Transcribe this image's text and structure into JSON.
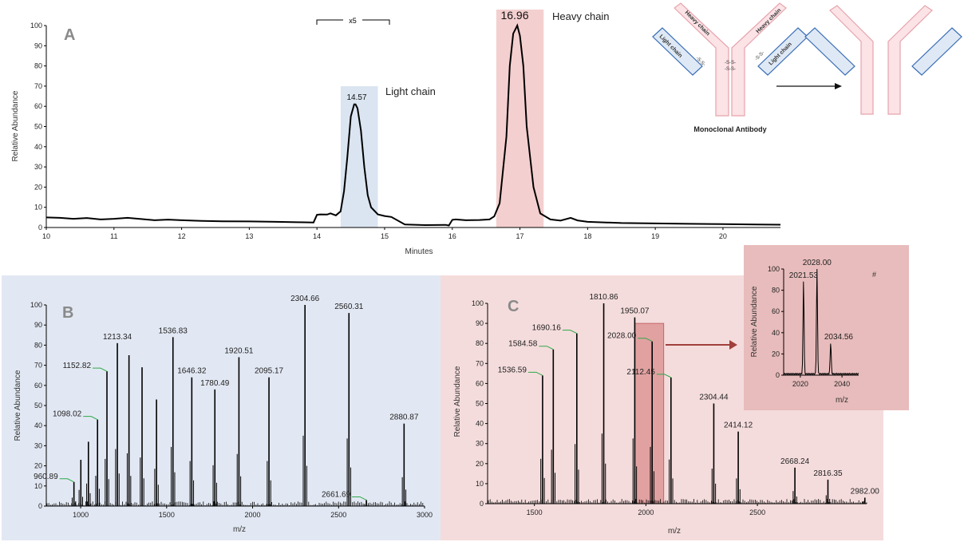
{
  "panels": {
    "a": {
      "letter": "A",
      "ylabel": "Relative Abundance",
      "xlabel": "Minutes",
      "zoom_label": "x5",
      "light_label": "Light chain",
      "heavy_label": "Heavy chain",
      "light_peak_label": "14.57",
      "heavy_peak_label": "16.96"
    },
    "b": {
      "letter": "B",
      "ylabel": "Relative Abundance",
      "xlabel": "m/z"
    },
    "c": {
      "letter": "C",
      "ylabel": "Relative Abundance",
      "xlabel": "m/z"
    },
    "inset": {
      "ylabel": "Relative Abundance",
      "xlabel": "m/z",
      "hash": "#"
    }
  },
  "diagram": {
    "title": "Monoclonal Antibody",
    "heavy_chain": "Heavy chain",
    "light_chain": "Light chain",
    "disulfide": "-S-S-",
    "colors": {
      "heavy": "#e6a3ac",
      "heavy_fill": "#fbe3e6",
      "light": "#3b6fb6",
      "light_fill": "#dfe9f5"
    }
  },
  "colors": {
    "blue_band": "#dbe5f1",
    "pink_band": "#f4cfcf",
    "panel_b_bg": "#e2e8f3",
    "panel_c_bg": "#f5dcdc",
    "inset_bg": "#e8bcbc",
    "leader": "#2ea84a",
    "arrow": "#a0403c"
  },
  "chart_data": [
    {
      "id": "A",
      "type": "line",
      "xlabel": "Minutes",
      "ylabel": "Relative Abundance",
      "xlim": [
        10,
        20.85
      ],
      "ylim": [
        0,
        100
      ],
      "xticks": [
        10,
        11,
        12,
        13,
        14,
        15,
        16,
        17,
        18,
        19,
        20
      ],
      "yticks": [
        0,
        10,
        20,
        30,
        40,
        50,
        60,
        70,
        80,
        90,
        100
      ],
      "shaded_regions": [
        {
          "range": [
            14.35,
            14.9
          ],
          "label": "Light chain",
          "color": "#dbe5f1"
        },
        {
          "range": [
            16.65,
            17.35
          ],
          "label": "Heavy chain",
          "color": "#f4cfcf"
        }
      ],
      "annotations": [
        {
          "x": 14.57,
          "y": 61,
          "text": "14.57"
        },
        {
          "x": 16.96,
          "y": 100,
          "text": "16.96"
        }
      ],
      "zoom_bracket": {
        "range": [
          14.0,
          15.1
        ],
        "text": "x5"
      },
      "series": [
        {
          "x": [
            10,
            10.2,
            10.4,
            10.6,
            10.8,
            11.0,
            11.2,
            11.4,
            11.6,
            11.8,
            12.0,
            12.3,
            12.6,
            13.0,
            13.4,
            13.7,
            13.95,
            14.0,
            14.05,
            14.15,
            14.2,
            14.28,
            14.35,
            14.4,
            14.45,
            14.5,
            14.55,
            14.57,
            14.6,
            14.65,
            14.7,
            14.75,
            14.8,
            14.9,
            15.0,
            15.1,
            15.3,
            15.6,
            15.9,
            15.95,
            16.0,
            16.05,
            16.2,
            16.4,
            16.55,
            16.62,
            16.7,
            16.8,
            16.85,
            16.9,
            16.96,
            17.0,
            17.05,
            17.1,
            17.2,
            17.3,
            17.45,
            17.6,
            17.75,
            17.85,
            18.0,
            18.5,
            19.0,
            19.5,
            20.0,
            20.5,
            20.85
          ],
          "y": [
            5,
            4.8,
            4.3,
            4.7,
            4.0,
            4.3,
            4.8,
            4.2,
            3.6,
            3.9,
            3.6,
            3.3,
            3.1,
            3.0,
            2.8,
            2.6,
            2.5,
            6.3,
            6.5,
            6.4,
            7.0,
            6.0,
            8,
            18,
            35,
            55,
            61,
            61,
            59,
            48,
            30,
            16,
            10,
            6.5,
            5.7,
            5.2,
            1.5,
            1.2,
            1.3,
            1.0,
            3.8,
            4.0,
            3.6,
            3.7,
            4.0,
            5.5,
            12,
            45,
            80,
            96,
            100,
            95,
            80,
            50,
            20,
            7,
            4,
            3.4,
            4.8,
            3.5,
            2.8,
            2.2,
            2.0,
            1.8,
            1.7,
            1.5,
            1.4
          ]
        }
      ]
    },
    {
      "id": "B",
      "type": "bar",
      "xlabel": "m/z",
      "ylabel": "Relative Abundance",
      "xlim": [
        800,
        3000
      ],
      "ylim": [
        0,
        100
      ],
      "xticks": [
        1000,
        1500,
        2000,
        2500,
        3000
      ],
      "yticks": [
        0,
        10,
        20,
        30,
        40,
        50,
        60,
        70,
        80,
        90,
        100
      ],
      "peaks": [
        {
          "mz": 960.89,
          "value": 12,
          "label": "960.89",
          "leader": true
        },
        {
          "mz": 1001,
          "value": 23
        },
        {
          "mz": 1045,
          "value": 32
        },
        {
          "mz": 1098.02,
          "value": 43,
          "label": "1098.02",
          "leader": true
        },
        {
          "mz": 1152.82,
          "value": 67,
          "label": "1152.82",
          "leader": true
        },
        {
          "mz": 1213.34,
          "value": 81,
          "label": "1213.34"
        },
        {
          "mz": 1281,
          "value": 75
        },
        {
          "mz": 1357,
          "value": 69
        },
        {
          "mz": 1441,
          "value": 53
        },
        {
          "mz": 1536.83,
          "value": 84,
          "label": "1536.83"
        },
        {
          "mz": 1646.32,
          "value": 64,
          "label": "1646.32"
        },
        {
          "mz": 1780.49,
          "value": 58,
          "label": "1780.49"
        },
        {
          "mz": 1920.51,
          "value": 74,
          "label": "1920.51"
        },
        {
          "mz": 2095.17,
          "value": 64,
          "label": "2095.17"
        },
        {
          "mz": 2304.66,
          "value": 100,
          "label": "2304.66"
        },
        {
          "mz": 2560.31,
          "value": 96,
          "label": "2560.31"
        },
        {
          "mz": 2661.69,
          "value": 3,
          "label": "2661.69",
          "leader": true
        },
        {
          "mz": 2880.87,
          "value": 41,
          "label": "2880.87"
        }
      ]
    },
    {
      "id": "C",
      "type": "bar",
      "xlabel": "m/z",
      "ylabel": "Relative Abundance",
      "xlim": [
        1290,
        2990
      ],
      "ylim": [
        0,
        100
      ],
      "xticks": [
        1500,
        2000,
        2500
      ],
      "yticks": [
        0,
        10,
        20,
        30,
        40,
        50,
        60,
        70,
        80,
        90,
        100
      ],
      "highlight_range": [
        1950,
        2080
      ],
      "peaks": [
        {
          "mz": 1536.59,
          "value": 64,
          "label": "1536.59",
          "leader": true
        },
        {
          "mz": 1584.58,
          "value": 77,
          "label": "1584.58",
          "leader": true
        },
        {
          "mz": 1690.16,
          "value": 85,
          "label": "1690.16",
          "leader": true
        },
        {
          "mz": 1810.86,
          "value": 100,
          "label": "1810.86"
        },
        {
          "mz": 1950.07,
          "value": 93,
          "label": "1950.07"
        },
        {
          "mz": 2028.0,
          "value": 81,
          "label": "2028.00",
          "leader": true
        },
        {
          "mz": 2112.45,
          "value": 63,
          "label": "2112.45",
          "leader": true
        },
        {
          "mz": 2304.44,
          "value": 50,
          "label": "2304.44"
        },
        {
          "mz": 2414.12,
          "value": 36,
          "label": "2414.12"
        },
        {
          "mz": 2668.24,
          "value": 18,
          "label": "2668.24"
        },
        {
          "mz": 2816.35,
          "value": 12,
          "label": "2816.35"
        },
        {
          "mz": 2982.0,
          "value": 3,
          "label": "2982.00"
        }
      ]
    },
    {
      "id": "C-inset",
      "type": "line",
      "xlabel": "m/z",
      "ylabel": "Relative Abundance",
      "xlim": [
        2012,
        2048
      ],
      "ylim": [
        0,
        100
      ],
      "xticks": [
        2020,
        2040
      ],
      "yticks": [
        0,
        20,
        40,
        60,
        80,
        100
      ],
      "annotations": [
        {
          "x": 2021.53,
          "y": 88,
          "text": "2021.53"
        },
        {
          "x": 2028.0,
          "y": 100,
          "text": "2028.00"
        },
        {
          "x": 2034.56,
          "y": 30,
          "text": "2034.56"
        }
      ],
      "peaks": [
        {
          "mz": 2021.53,
          "value": 88
        },
        {
          "mz": 2028.0,
          "value": 100
        },
        {
          "mz": 2034.56,
          "value": 30
        }
      ]
    }
  ]
}
